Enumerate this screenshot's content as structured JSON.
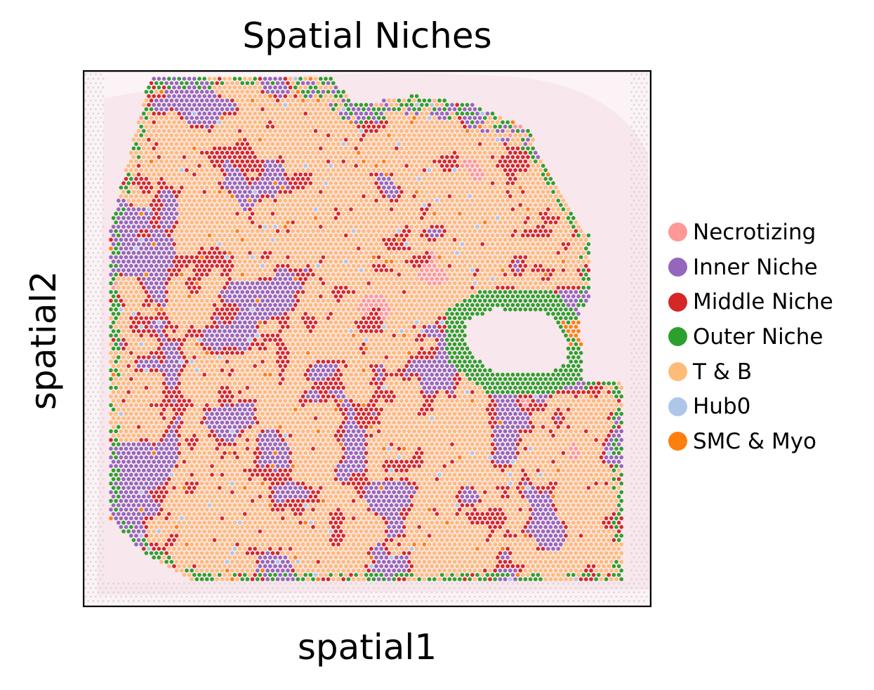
{
  "chart_data": {
    "type": "scatter",
    "title": "Spatial Niches",
    "xlabel": "spatial1",
    "ylabel": "spatial2",
    "xticks": [],
    "yticks": [],
    "grid": false,
    "legend_position": "right",
    "background_image": "H&E tissue section (faint pink)",
    "series": [
      {
        "name": "Necrotizing",
        "color": "#ff9896",
        "share": 0.03
      },
      {
        "name": "Inner Niche",
        "color": "#9467bd",
        "share": 0.25
      },
      {
        "name": "Middle Niche",
        "color": "#d62728",
        "share": 0.12
      },
      {
        "name": "Outer Niche",
        "color": "#2ca02c",
        "share": 0.06
      },
      {
        "name": "T & B",
        "color": "#ffbb78",
        "share": 0.52
      },
      {
        "name": "Hub0",
        "color": "#aec7e8",
        "share": 0.01
      },
      {
        "name": "SMC & Myo",
        "color": "#ff7f0e",
        "share": 0.01
      }
    ]
  }
}
